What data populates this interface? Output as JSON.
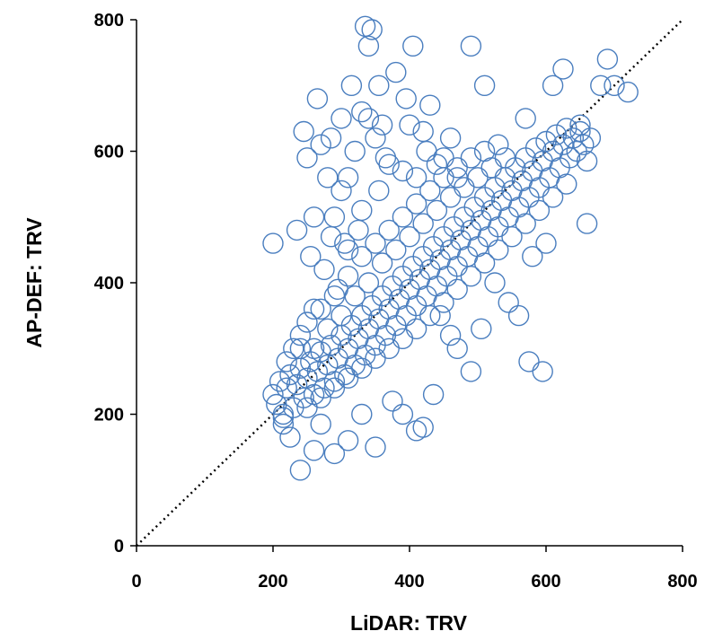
{
  "chart_data": {
    "type": "scatter",
    "title": "",
    "xlabel": "LiDAR: TRV",
    "ylabel": "AP-DEF: TRV",
    "xlim": [
      0,
      800
    ],
    "ylim": [
      0,
      800
    ],
    "x_ticks": [
      "0",
      "200",
      "400",
      "600",
      "800"
    ],
    "y_ticks": [
      "0",
      "200",
      "400",
      "600",
      "800"
    ],
    "grid": false,
    "legend": "none",
    "marker": {
      "shape": "open-circle",
      "color": "#4a7ebf"
    },
    "reference_line": {
      "style": "dotted",
      "color": "#000000",
      "points": [
        [
          0,
          0
        ],
        [
          800,
          800
        ]
      ]
    },
    "series": [
      {
        "points": [
          [
            200,
            230
          ],
          [
            205,
            215
          ],
          [
            210,
            250
          ],
          [
            215,
            195
          ],
          [
            220,
            240
          ],
          [
            225,
            260
          ],
          [
            230,
            210
          ],
          [
            235,
            245
          ],
          [
            240,
            270
          ],
          [
            245,
            225
          ],
          [
            250,
            255
          ],
          [
            255,
            280
          ],
          [
            260,
            230
          ],
          [
            265,
            265
          ],
          [
            270,
            295
          ],
          [
            275,
            240
          ],
          [
            280,
            275
          ],
          [
            285,
            305
          ],
          [
            290,
            250
          ],
          [
            295,
            285
          ],
          [
            300,
            320
          ],
          [
            305,
            260
          ],
          [
            310,
            300
          ],
          [
            315,
            335
          ],
          [
            320,
            275
          ],
          [
            325,
            315
          ],
          [
            330,
            350
          ],
          [
            335,
            290
          ],
          [
            340,
            330
          ],
          [
            345,
            365
          ],
          [
            350,
            305
          ],
          [
            355,
            345
          ],
          [
            360,
            380
          ],
          [
            365,
            320
          ],
          [
            370,
            360
          ],
          [
            375,
            395
          ],
          [
            380,
            335
          ],
          [
            385,
            375
          ],
          [
            390,
            410
          ],
          [
            395,
            350
          ],
          [
            400,
            390
          ],
          [
            405,
            425
          ],
          [
            410,
            365
          ],
          [
            415,
            405
          ],
          [
            420,
            440
          ],
          [
            425,
            380
          ],
          [
            430,
            420
          ],
          [
            435,
            455
          ],
          [
            440,
            395
          ],
          [
            445,
            435
          ],
          [
            450,
            470
          ],
          [
            455,
            410
          ],
          [
            460,
            450
          ],
          [
            465,
            485
          ],
          [
            470,
            425
          ],
          [
            475,
            465
          ],
          [
            480,
            500
          ],
          [
            485,
            440
          ],
          [
            490,
            480
          ],
          [
            495,
            515
          ],
          [
            500,
            455
          ],
          [
            505,
            495
          ],
          [
            510,
            530
          ],
          [
            515,
            470
          ],
          [
            520,
            510
          ],
          [
            525,
            545
          ],
          [
            530,
            485
          ],
          [
            535,
            525
          ],
          [
            540,
            560
          ],
          [
            545,
            500
          ],
          [
            550,
            540
          ],
          [
            555,
            575
          ],
          [
            560,
            515
          ],
          [
            565,
            555
          ],
          [
            570,
            590
          ],
          [
            575,
            530
          ],
          [
            580,
            570
          ],
          [
            585,
            605
          ],
          [
            590,
            545
          ],
          [
            595,
            585
          ],
          [
            600,
            615
          ],
          [
            605,
            560
          ],
          [
            610,
            600
          ],
          [
            615,
            625
          ],
          [
            620,
            575
          ],
          [
            625,
            610
          ],
          [
            630,
            635
          ],
          [
            635,
            590
          ],
          [
            640,
            620
          ],
          [
            645,
            600
          ],
          [
            650,
            630
          ],
          [
            655,
            610
          ],
          [
            660,
            585
          ],
          [
            665,
            620
          ],
          [
            230,
            300
          ],
          [
            240,
            320
          ],
          [
            250,
            340
          ],
          [
            260,
            300
          ],
          [
            270,
            360
          ],
          [
            280,
            330
          ],
          [
            290,
            380
          ],
          [
            300,
            350
          ],
          [
            310,
            410
          ],
          [
            320,
            380
          ],
          [
            330,
            440
          ],
          [
            340,
            400
          ],
          [
            350,
            460
          ],
          [
            360,
            430
          ],
          [
            370,
            480
          ],
          [
            380,
            450
          ],
          [
            390,
            500
          ],
          [
            400,
            470
          ],
          [
            410,
            520
          ],
          [
            420,
            490
          ],
          [
            430,
            540
          ],
          [
            440,
            510
          ],
          [
            450,
            560
          ],
          [
            460,
            530
          ],
          [
            470,
            575
          ],
          [
            480,
            545
          ],
          [
            490,
            590
          ],
          [
            500,
            560
          ],
          [
            510,
            600
          ],
          [
            520,
            575
          ],
          [
            530,
            610
          ],
          [
            540,
            590
          ],
          [
            250,
            210
          ],
          [
            270,
            225
          ],
          [
            290,
            240
          ],
          [
            310,
            255
          ],
          [
            330,
            270
          ],
          [
            350,
            285
          ],
          [
            370,
            300
          ],
          [
            390,
            315
          ],
          [
            410,
            330
          ],
          [
            430,
            350
          ],
          [
            450,
            370
          ],
          [
            470,
            390
          ],
          [
            490,
            410
          ],
          [
            510,
            430
          ],
          [
            530,
            450
          ],
          [
            550,
            470
          ],
          [
            570,
            490
          ],
          [
            590,
            510
          ],
          [
            610,
            530
          ],
          [
            630,
            550
          ],
          [
            200,
            460
          ],
          [
            215,
            200
          ],
          [
            235,
            480
          ],
          [
            245,
            630
          ],
          [
            250,
            590
          ],
          [
            255,
            440
          ],
          [
            265,
            680
          ],
          [
            270,
            610
          ],
          [
            275,
            420
          ],
          [
            285,
            620
          ],
          [
            290,
            500
          ],
          [
            295,
            390
          ],
          [
            300,
            650
          ],
          [
            305,
            460
          ],
          [
            310,
            560
          ],
          [
            315,
            700
          ],
          [
            320,
            600
          ],
          [
            325,
            480
          ],
          [
            330,
            660
          ],
          [
            335,
            790
          ],
          [
            340,
            760
          ],
          [
            345,
            785
          ],
          [
            350,
            620
          ],
          [
            355,
            540
          ],
          [
            360,
            640
          ],
          [
            365,
            590
          ],
          [
            380,
            720
          ],
          [
            390,
            570
          ],
          [
            395,
            680
          ],
          [
            400,
            640
          ],
          [
            405,
            760
          ],
          [
            410,
            560
          ],
          [
            420,
            630
          ],
          [
            425,
            600
          ],
          [
            430,
            670
          ],
          [
            440,
            580
          ],
          [
            450,
            590
          ],
          [
            460,
            620
          ],
          [
            470,
            560
          ],
          [
            490,
            760
          ],
          [
            510,
            700
          ],
          [
            570,
            650
          ],
          [
            610,
            700
          ],
          [
            625,
            725
          ],
          [
            650,
            640
          ],
          [
            680,
            700
          ],
          [
            690,
            740
          ],
          [
            700,
            700
          ],
          [
            720,
            690
          ],
          [
            660,
            490
          ],
          [
            600,
            460
          ],
          [
            580,
            440
          ],
          [
            560,
            350
          ],
          [
            595,
            265
          ],
          [
            575,
            280
          ],
          [
            545,
            370
          ],
          [
            525,
            400
          ],
          [
            505,
            330
          ],
          [
            490,
            265
          ],
          [
            470,
            300
          ],
          [
            460,
            320
          ],
          [
            445,
            350
          ],
          [
            435,
            230
          ],
          [
            420,
            180
          ],
          [
            410,
            175
          ],
          [
            390,
            200
          ],
          [
            375,
            220
          ],
          [
            350,
            150
          ],
          [
            330,
            200
          ],
          [
            310,
            160
          ],
          [
            290,
            140
          ],
          [
            270,
            185
          ],
          [
            260,
            145
          ],
          [
            240,
            115
          ],
          [
            225,
            165
          ],
          [
            215,
            185
          ],
          [
            260,
            500
          ],
          [
            280,
            560
          ],
          [
            330,
            510
          ],
          [
            370,
            580
          ],
          [
            355,
            700
          ],
          [
            340,
            650
          ],
          [
            300,
            540
          ],
          [
            285,
            470
          ],
          [
            310,
            450
          ],
          [
            260,
            360
          ],
          [
            240,
            300
          ],
          [
            220,
            280
          ]
        ]
      }
    ]
  }
}
